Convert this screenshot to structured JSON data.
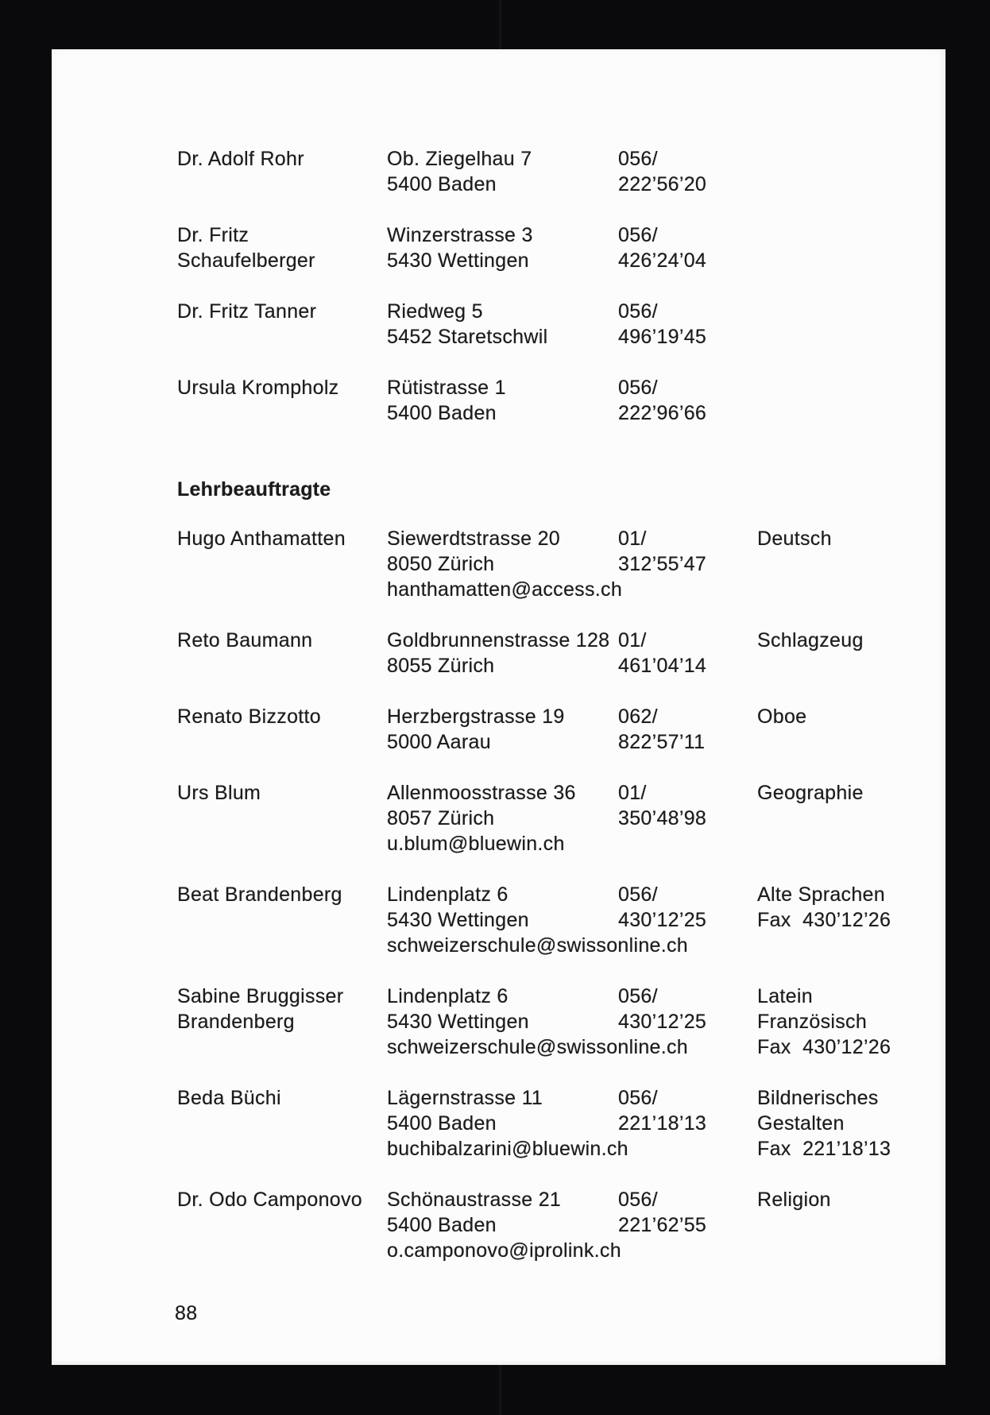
{
  "colors": {
    "scan_bg": "#0a0a0c",
    "page_bg": "#fcfcfc",
    "text": "#1c1c1e"
  },
  "document": {
    "page_number": "88",
    "section_heading": "Lehrbeauftragte",
    "professors": [
      {
        "name_lines": [
          "Dr. Adolf Rohr"
        ],
        "address_lines": [
          "Ob. Ziegelhau 7",
          "5400 Baden"
        ],
        "phone_lines": [
          "056/",
          "222’56’20"
        ],
        "subject_lines": []
      },
      {
        "name_lines": [
          "Dr. Fritz",
          "Schaufelberger"
        ],
        "address_lines": [
          "Winzerstrasse 3",
          "5430 Wettingen"
        ],
        "phone_lines": [
          "056/",
          "426’24’04"
        ],
        "subject_lines": []
      },
      {
        "name_lines": [
          "Dr. Fritz Tanner"
        ],
        "address_lines": [
          "Riedweg 5",
          "5452 Staretschwil"
        ],
        "phone_lines": [
          "056/",
          "496’19’45"
        ],
        "subject_lines": []
      },
      {
        "name_lines": [
          "Ursula Krompholz"
        ],
        "address_lines": [
          "Rütistrasse 1",
          "5400 Baden"
        ],
        "phone_lines": [
          "056/",
          "222’96’66"
        ],
        "subject_lines": []
      }
    ],
    "lecturers": [
      {
        "name_lines": [
          "Hugo Anthamatten"
        ],
        "address_lines": [
          "Siewerdtstrasse 20",
          "8050 Zürich",
          "hanthamatten@access.ch"
        ],
        "phone_lines": [
          "01/",
          "312’55’47"
        ],
        "subject_lines": [
          "Deutsch"
        ]
      },
      {
        "name_lines": [
          "Reto Baumann"
        ],
        "address_lines": [
          "Goldbrunnenstrasse 128",
          "8055 Zürich"
        ],
        "phone_lines": [
          "01/",
          "461’04’14"
        ],
        "subject_lines": [
          "Schlagzeug"
        ]
      },
      {
        "name_lines": [
          "Renato Bizzotto"
        ],
        "address_lines": [
          "Herzbergstrasse 19",
          "5000 Aarau"
        ],
        "phone_lines": [
          "062/",
          "822’57’11"
        ],
        "subject_lines": [
          "Oboe"
        ]
      },
      {
        "name_lines": [
          "Urs Blum"
        ],
        "address_lines": [
          "Allenmoosstrasse 36",
          "8057 Zürich",
          "u.blum@bluewin.ch"
        ],
        "phone_lines": [
          "01/",
          "350’48’98"
        ],
        "subject_lines": [
          "Geographie"
        ]
      },
      {
        "name_lines": [
          "Beat Brandenberg"
        ],
        "address_lines": [
          "Lindenplatz 6",
          "5430 Wettingen",
          "schweizerschule@swissonline.ch"
        ],
        "phone_lines": [
          "056/",
          "430’12’25"
        ],
        "subject_lines": [
          "Alte Sprachen",
          "Fax  430’12’26"
        ]
      },
      {
        "name_lines": [
          "Sabine Bruggisser",
          "Brandenberg"
        ],
        "address_lines": [
          "Lindenplatz 6",
          "5430 Wettingen",
          "schweizerschule@swissonline.ch"
        ],
        "phone_lines": [
          "056/",
          "430’12’25"
        ],
        "subject_lines": [
          "Latein",
          "Französisch",
          "Fax  430’12’26"
        ]
      },
      {
        "name_lines": [
          "Beda Büchi"
        ],
        "address_lines": [
          "Lägernstrasse 11",
          "5400 Baden",
          "buchibalzarini@bluewin.ch"
        ],
        "phone_lines": [
          "056/",
          "221’18’13"
        ],
        "subject_lines": [
          "Bildnerisches",
          "Gestalten",
          "Fax  221’18’13"
        ]
      },
      {
        "name_lines": [
          "Dr. Odo Camponovo"
        ],
        "address_lines": [
          "Schönaustrasse 21",
          "5400 Baden",
          "o.camponovo@iprolink.ch"
        ],
        "phone_lines": [
          "056/",
          "221’62’55"
        ],
        "subject_lines": [
          "Religion"
        ]
      }
    ]
  }
}
